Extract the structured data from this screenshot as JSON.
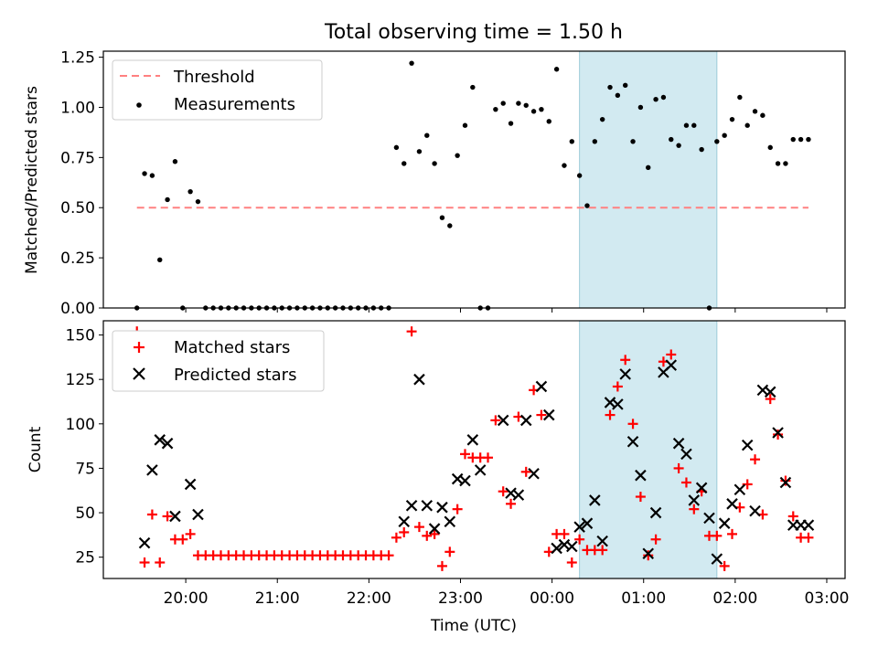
{
  "figure_title": "Total observing time = 1.50 h",
  "chart_data": [
    {
      "type": "scatter",
      "ylabel": "Matched/Predicted stars",
      "xlabel": "",
      "ylim": [
        0,
        1.28
      ],
      "yticks": [
        "0.00",
        "0.25",
        "0.50",
        "0.75",
        "1.00",
        "1.25"
      ],
      "legend_position": "top-left",
      "threshold": {
        "name": "Threshold",
        "value": 0.5,
        "x_range": [
          "19:28",
          "02:48"
        ],
        "color": "#ff8080"
      },
      "shaded_interval": {
        "x_range": [
          "00:18",
          "01:48"
        ],
        "color": "#add8e6"
      },
      "series": [
        {
          "name": "Measurements",
          "color": "#000000",
          "x": [
            "19:28",
            "19:33",
            "19:38",
            "19:43",
            "19:48",
            "19:53",
            "19:58",
            "20:03",
            "20:08",
            "20:13",
            "20:18",
            "20:23",
            "20:28",
            "20:33",
            "20:38",
            "20:43",
            "20:48",
            "20:53",
            "20:58",
            "21:03",
            "21:08",
            "21:13",
            "21:18",
            "21:23",
            "21:28",
            "21:33",
            "21:38",
            "21:43",
            "21:48",
            "21:53",
            "21:58",
            "22:03",
            "22:08",
            "22:13",
            "22:18",
            "22:23",
            "22:28",
            "22:33",
            "22:38",
            "22:43",
            "22:48",
            "22:53",
            "22:58",
            "23:03",
            "23:08",
            "23:13",
            "23:18",
            "23:23",
            "23:28",
            "23:33",
            "23:38",
            "23:43",
            "23:48",
            "23:53",
            "23:58",
            "00:03",
            "00:08",
            "00:13",
            "00:18",
            "00:23",
            "00:28",
            "00:33",
            "00:38",
            "00:43",
            "00:48",
            "00:53",
            "00:58",
            "01:03",
            "01:08",
            "01:13",
            "01:18",
            "01:23",
            "01:28",
            "01:33",
            "01:38",
            "01:43",
            "01:48",
            "01:53",
            "01:58",
            "02:03",
            "02:08",
            "02:13",
            "02:18",
            "02:23",
            "02:28",
            "02:33",
            "02:38",
            "02:43",
            "02:48"
          ],
          "y": [
            0.0,
            0.67,
            0.66,
            0.24,
            0.54,
            0.73,
            0.0,
            0.58,
            0.53,
            0.0,
            0.0,
            0.0,
            0.0,
            0.0,
            0.0,
            0.0,
            0.0,
            0.0,
            0.0,
            0.0,
            0.0,
            0.0,
            0.0,
            0.0,
            0.0,
            0.0,
            0.0,
            0.0,
            0.0,
            0.0,
            0.0,
            0.0,
            0.0,
            0.0,
            0.8,
            0.72,
            1.22,
            0.78,
            0.86,
            0.72,
            0.45,
            0.41,
            0.76,
            0.91,
            1.1,
            0.0,
            0.0,
            0.99,
            1.02,
            0.92,
            1.02,
            1.01,
            0.98,
            0.99,
            0.93,
            1.19,
            0.71,
            0.83,
            0.66,
            0.51,
            0.83,
            0.94,
            1.1,
            1.06,
            1.11,
            0.83,
            1.0,
            0.7,
            1.04,
            1.05,
            0.84,
            0.81,
            0.91,
            0.91,
            0.79,
            0.0,
            0.83,
            0.86,
            0.94,
            1.05,
            0.91,
            0.98,
            0.96,
            0.8,
            0.72,
            0.72,
            0.84,
            0.84,
            0.84
          ]
        }
      ]
    },
    {
      "type": "scatter",
      "ylabel": "Count",
      "xlabel": "Time (UTC)",
      "ylim": [
        13,
        158
      ],
      "yticks": [
        "25",
        "50",
        "75",
        "100",
        "125",
        "150"
      ],
      "xlim_hours": [
        19.1,
        27.2
      ],
      "xticks": [
        "20:00",
        "21:00",
        "22:00",
        "23:00",
        "00:00",
        "01:00",
        "02:00",
        "03:00"
      ],
      "legend_position": "top-left",
      "shaded_interval": {
        "x_range": [
          "00:18",
          "01:48"
        ],
        "color": "#add8e6"
      },
      "series": [
        {
          "name": "Matched stars",
          "marker": "plus",
          "color": "#ff0000",
          "x": [
            "19:28",
            "19:33",
            "19:38",
            "19:43",
            "19:48",
            "19:53",
            "19:58",
            "20:03",
            "20:08",
            "20:13",
            "20:18",
            "20:23",
            "20:28",
            "20:33",
            "20:38",
            "20:43",
            "20:48",
            "20:53",
            "20:58",
            "21:03",
            "21:08",
            "21:13",
            "21:18",
            "21:23",
            "21:28",
            "21:33",
            "21:38",
            "21:43",
            "21:48",
            "21:53",
            "21:58",
            "22:03",
            "22:08",
            "22:13",
            "22:18",
            "22:23",
            "22:28",
            "22:33",
            "22:38",
            "22:43",
            "22:48",
            "22:53",
            "22:58",
            "23:03",
            "23:08",
            "23:13",
            "23:18",
            "23:23",
            "23:28",
            "23:33",
            "23:38",
            "23:43",
            "23:48",
            "23:53",
            "23:58",
            "00:03",
            "00:08",
            "00:13",
            "00:18",
            "00:23",
            "00:28",
            "00:33",
            "00:38",
            "00:43",
            "00:48",
            "00:53",
            "00:58",
            "01:03",
            "01:08",
            "01:13",
            "01:18",
            "01:23",
            "01:28",
            "01:33",
            "01:38",
            "01:43",
            "01:48",
            "01:53",
            "01:58",
            "02:03",
            "02:08",
            "02:13",
            "02:18",
            "02:23",
            "02:28",
            "02:33",
            "02:38",
            "02:43",
            "02:48"
          ],
          "y": [
            152,
            22,
            49,
            22,
            48,
            35,
            35,
            38,
            26,
            26,
            26,
            26,
            26,
            26,
            26,
            26,
            26,
            26,
            26,
            26,
            26,
            26,
            26,
            26,
            26,
            26,
            26,
            26,
            26,
            26,
            26,
            26,
            26,
            26,
            36,
            39,
            152,
            42,
            37,
            38,
            20,
            28,
            52,
            83,
            81,
            81,
            81,
            102,
            62,
            55,
            104,
            73,
            119,
            105,
            28,
            38,
            38,
            22,
            35,
            29,
            29,
            29,
            105,
            121,
            136,
            100,
            59,
            26,
            35,
            135,
            139,
            75,
            67,
            52,
            62,
            37,
            37,
            20,
            38,
            53,
            66,
            80,
            49,
            114,
            94,
            68,
            48,
            36,
            36
          ]
        },
        {
          "name": "Predicted stars",
          "marker": "x",
          "color": "#000000",
          "x": [
            "19:33",
            "19:38",
            "19:43",
            "19:48",
            "19:53",
            "20:03",
            "20:08",
            "22:23",
            "22:28",
            "22:33",
            "22:38",
            "22:43",
            "22:48",
            "22:53",
            "22:58",
            "23:03",
            "23:08",
            "23:13",
            "23:28",
            "23:33",
            "23:38",
            "23:43",
            "23:48",
            "23:53",
            "23:58",
            "00:03",
            "00:08",
            "00:13",
            "00:18",
            "00:23",
            "00:28",
            "00:33",
            "00:38",
            "00:43",
            "00:48",
            "00:53",
            "00:58",
            "01:03",
            "01:08",
            "01:13",
            "01:18",
            "01:23",
            "01:28",
            "01:33",
            "01:38",
            "01:43",
            "01:48",
            "01:53",
            "01:58",
            "02:03",
            "02:08",
            "02:13",
            "02:18",
            "02:23",
            "02:28",
            "02:33",
            "02:38",
            "02:43",
            "02:48"
          ],
          "y": [
            33,
            74,
            91,
            89,
            48,
            66,
            49,
            45,
            54,
            125,
            54,
            41,
            53,
            45,
            69,
            68,
            91,
            74,
            102,
            61,
            60,
            102,
            72,
            121,
            105,
            30,
            32,
            31,
            42,
            44,
            57,
            34,
            112,
            111,
            128,
            90,
            71,
            27,
            50,
            129,
            133,
            89,
            83,
            57,
            64,
            47,
            24,
            44,
            55,
            63,
            88,
            51,
            119,
            118,
            95,
            67,
            43,
            43,
            43
          ]
        }
      ]
    }
  ]
}
